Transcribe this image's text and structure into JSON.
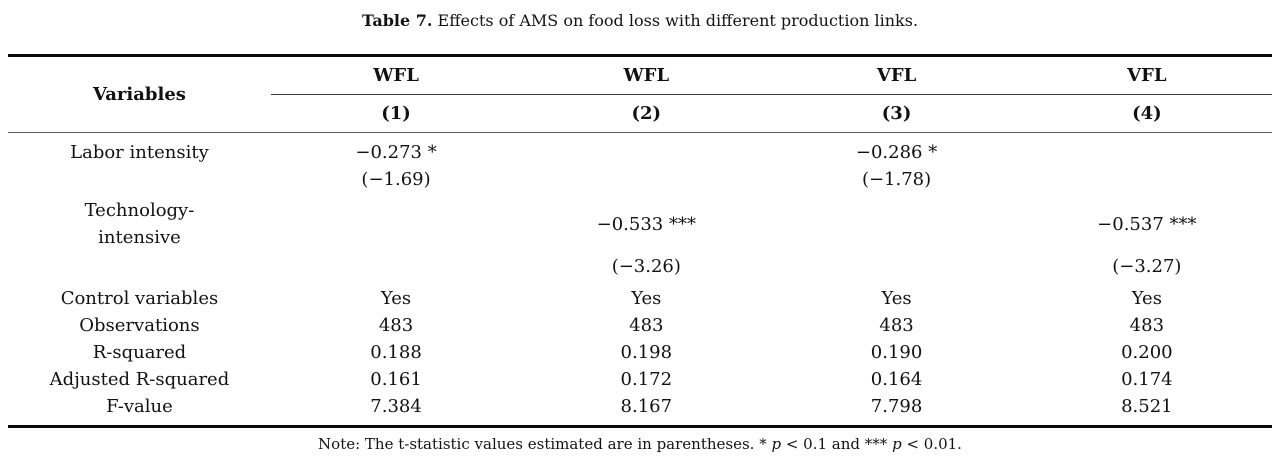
{
  "caption": {
    "label": "Table 7.",
    "text": " Effects of AMS on food loss with different production links."
  },
  "table": {
    "variables_header": "Variables",
    "model_headers": [
      "WFL",
      "WFL",
      "VFL",
      "VFL"
    ],
    "model_numbers": [
      "(1)",
      "(2)",
      "(3)",
      "(4)"
    ],
    "rows": [
      {
        "label": "Labor intensity",
        "cells": [
          "−0.273 *",
          "",
          "−0.286 *",
          ""
        ]
      },
      {
        "label": "",
        "cells": [
          "(−1.69)",
          "",
          "(−1.78)",
          ""
        ]
      },
      {
        "label": "Technology-\nintensive",
        "cells": [
          "",
          "−0.533 ***",
          "",
          "−0.537 ***"
        ]
      },
      {
        "label": "",
        "cells": [
          "",
          "(−3.26)",
          "",
          "(−3.27)"
        ]
      },
      {
        "label": "Control variables",
        "cells": [
          "Yes",
          "Yes",
          "Yes",
          "Yes"
        ]
      },
      {
        "label": "Observations",
        "cells": [
          "483",
          "483",
          "483",
          "483"
        ]
      },
      {
        "label": "R-squared",
        "cells": [
          "0.188",
          "0.198",
          "0.190",
          "0.200"
        ]
      },
      {
        "label": "Adjusted R-squared",
        "cells": [
          "0.161",
          "0.172",
          "0.164",
          "0.174"
        ]
      },
      {
        "label": "F-value",
        "cells": [
          "7.384",
          "8.167",
          "7.798",
          "8.521"
        ]
      }
    ]
  },
  "note": {
    "segments": [
      {
        "text": "Note: The t-statistic values estimated are in parentheses. * "
      },
      {
        "text": "p"
      },
      {
        "text": " < 0.1 and *** "
      },
      {
        "text": "p"
      },
      {
        "text": " < 0.01."
      }
    ]
  }
}
